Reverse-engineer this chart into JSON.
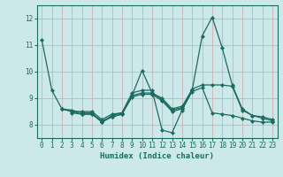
{
  "xlabel": "Humidex (Indice chaleur)",
  "xlim_min": -0.5,
  "xlim_max": 23.5,
  "ylim_min": 7.5,
  "ylim_max": 12.5,
  "yticks": [
    8,
    9,
    10,
    11,
    12
  ],
  "xticks": [
    0,
    1,
    2,
    3,
    4,
    5,
    6,
    7,
    8,
    9,
    10,
    11,
    12,
    13,
    14,
    15,
    16,
    17,
    18,
    19,
    20,
    21,
    22,
    23
  ],
  "bg_color": "#cde8e8",
  "line_color": "#1a6b60",
  "grid_color": "#b8d8d8",
  "lines": [
    {
      "x": [
        0,
        1,
        2,
        3,
        4,
        5,
        6,
        7,
        8,
        9,
        10,
        11,
        12,
        13,
        14,
        15,
        16,
        17,
        18,
        19,
        20,
        21,
        22,
        23
      ],
      "y": [
        11.2,
        9.3,
        8.6,
        8.55,
        8.45,
        8.45,
        8.1,
        8.35,
        8.45,
        9.1,
        10.05,
        9.2,
        9.0,
        8.6,
        8.7,
        9.3,
        11.35,
        12.05,
        10.9,
        9.5,
        8.6,
        8.35,
        8.3,
        8.2
      ]
    },
    {
      "x": [
        2,
        3,
        4,
        5,
        6,
        7,
        8,
        9,
        10,
        11,
        12,
        13,
        14,
        15,
        16,
        17,
        18,
        19,
        20,
        21,
        22,
        23
      ],
      "y": [
        8.6,
        8.5,
        8.4,
        8.4,
        8.15,
        8.3,
        8.4,
        9.1,
        9.2,
        9.2,
        8.95,
        8.55,
        8.65,
        9.35,
        9.5,
        9.5,
        9.5,
        9.45,
        8.55,
        8.35,
        8.25,
        8.15
      ]
    },
    {
      "x": [
        2,
        3,
        4,
        5,
        6,
        7,
        8,
        9,
        10,
        11,
        12,
        13,
        14,
        15
      ],
      "y": [
        8.6,
        8.5,
        8.5,
        8.5,
        8.2,
        8.4,
        8.45,
        9.2,
        9.3,
        9.3,
        7.8,
        7.7,
        8.55,
        9.3
      ]
    },
    {
      "x": [
        3,
        4,
        5,
        6,
        7,
        8,
        9,
        10,
        11,
        12,
        13,
        14,
        15,
        16,
        17,
        18,
        19,
        20,
        21,
        22,
        23
      ],
      "y": [
        8.45,
        8.4,
        8.4,
        8.1,
        8.3,
        8.4,
        9.05,
        9.15,
        9.15,
        8.9,
        8.5,
        8.6,
        9.25,
        9.4,
        8.45,
        8.4,
        8.35,
        8.25,
        8.15,
        8.1,
        8.1
      ]
    }
  ]
}
